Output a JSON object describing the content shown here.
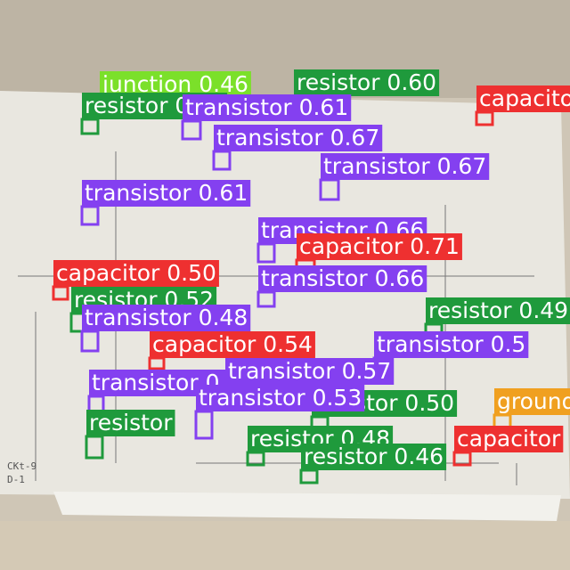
{
  "detections": [
    {
      "text": "junction 0.46",
      "color": "#7be02a"
    },
    {
      "text": "resistor 0.60",
      "color": "#1f9a3c"
    },
    {
      "text": "capacitor",
      "color": "#ee3030"
    },
    {
      "text": "resistor 0.61",
      "color": "#1f9a3c"
    },
    {
      "text": "transistor 0.61",
      "color": "#8440f0"
    },
    {
      "text": "transistor 0.67",
      "color": "#8440f0"
    },
    {
      "text": "transistor 0.67",
      "color": "#8440f0"
    },
    {
      "text": "transistor 0.61",
      "color": "#8440f0"
    },
    {
      "text": "transistor 0.66",
      "color": "#8440f0"
    },
    {
      "text": "capacitor 0.71",
      "color": "#ee3030"
    },
    {
      "text": "capacitor 0.50",
      "color": "#ee3030"
    },
    {
      "text": "transistor 0.66",
      "color": "#8440f0"
    },
    {
      "text": "resistor 0.52",
      "color": "#1f9a3c"
    },
    {
      "text": "resistor 0.49",
      "color": "#1f9a3c"
    },
    {
      "text": "transistor 0.48",
      "color": "#8440f0"
    },
    {
      "text": "capacitor 0.54",
      "color": "#ee3030"
    },
    {
      "text": "transistor 0.5",
      "color": "#8440f0"
    },
    {
      "text": "transistor 0.52",
      "color": "#8440f0"
    },
    {
      "text": "transistor 0.57",
      "color": "#8440f0"
    },
    {
      "text": "resistor 0.50",
      "color": "#1f9a3c"
    },
    {
      "text": "transistor 0.53",
      "color": "#8440f0"
    },
    {
      "text": "resistor",
      "color": "#1f9a3c"
    },
    {
      "text": "resistor 0.48",
      "color": "#1f9a3c"
    },
    {
      "text": "ground",
      "color": "#f0a020"
    },
    {
      "text": "capacitor",
      "color": "#ee3030"
    },
    {
      "text": "resistor 0.46",
      "color": "#1f9a3c"
    }
  ],
  "notes": [
    "CKt-9",
    "D-1"
  ]
}
